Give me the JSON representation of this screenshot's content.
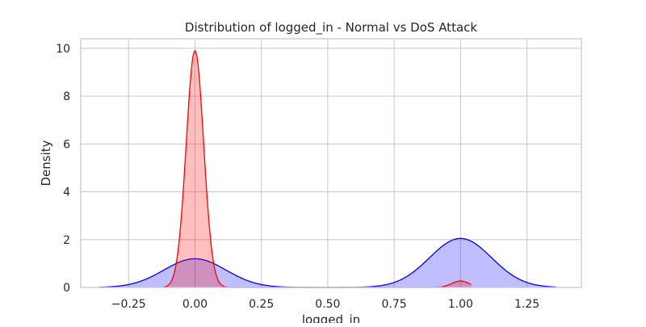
{
  "chart_data": {
    "type": "area",
    "title": "Distribution of logged_in - Normal vs DoS Attack",
    "xlabel": "logged_in",
    "ylabel": "Density",
    "xlim": [
      -0.43,
      1.455
    ],
    "ylim": [
      0,
      10.4
    ],
    "grid": true,
    "x_ticks": [
      -0.25,
      0.0,
      0.25,
      0.5,
      0.75,
      1.0,
      1.25
    ],
    "x_tick_labels": [
      "−0.25",
      "0.00",
      "0.25",
      "0.50",
      "0.75",
      "1.00",
      "1.25"
    ],
    "y_ticks": [
      0,
      2,
      4,
      6,
      8,
      10
    ],
    "y_tick_labels": [
      "0",
      "2",
      "4",
      "6",
      "8",
      "10"
    ],
    "series": [
      {
        "color": "#0000ff",
        "x_range": [
          -0.36,
          1.36
        ],
        "components": [
          {
            "mean": 0.0,
            "peak": 1.2,
            "sd": 0.117
          },
          {
            "mean": 1.0,
            "peak": 2.05,
            "sd": 0.117
          }
        ]
      },
      {
        "color": "#ff0000",
        "x_range": [
          -0.12,
          1.04
        ],
        "components": [
          {
            "mean": 0.0,
            "peak": 9.9,
            "sd": 0.033
          },
          {
            "mean": 1.0,
            "peak": 0.27,
            "sd": 0.033
          }
        ]
      }
    ]
  }
}
